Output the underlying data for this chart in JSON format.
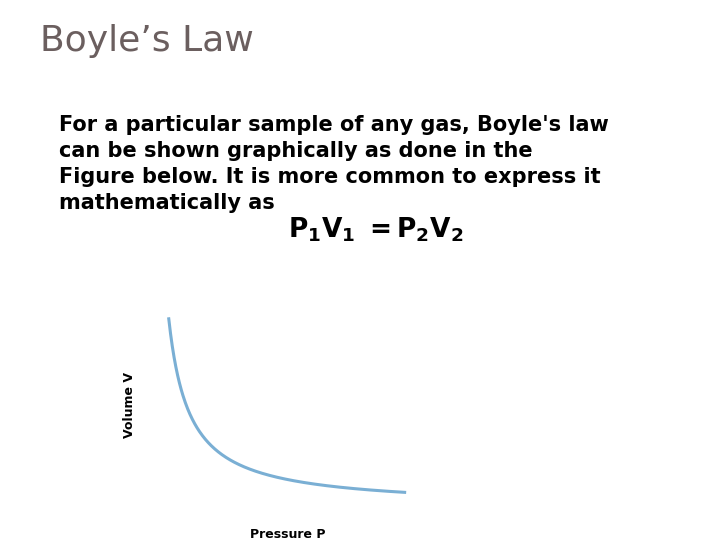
{
  "title": "Boyle’s Law",
  "title_color": "#6b5f5f",
  "title_fontsize": 26,
  "bar_color_orange": "#c0622a",
  "bar_color_blue": "#8eaec4",
  "bullet_lines": [
    "For a particular sample of any gas, Boyle's law",
    "can be shown graphically as done in the",
    "Figure below. It is more common to express it",
    "mathematically as"
  ],
  "bullet_fontsize": 15,
  "curve_color": "#7aafd4",
  "curve_lw": 2.2,
  "xlabel": "Pressure P",
  "ylabel": "Volume V",
  "axis_label_fontsize": 8,
  "bg_color": "#ffffff",
  "separator_blue": "#8eaec4",
  "separator_orange": "#c0622a"
}
